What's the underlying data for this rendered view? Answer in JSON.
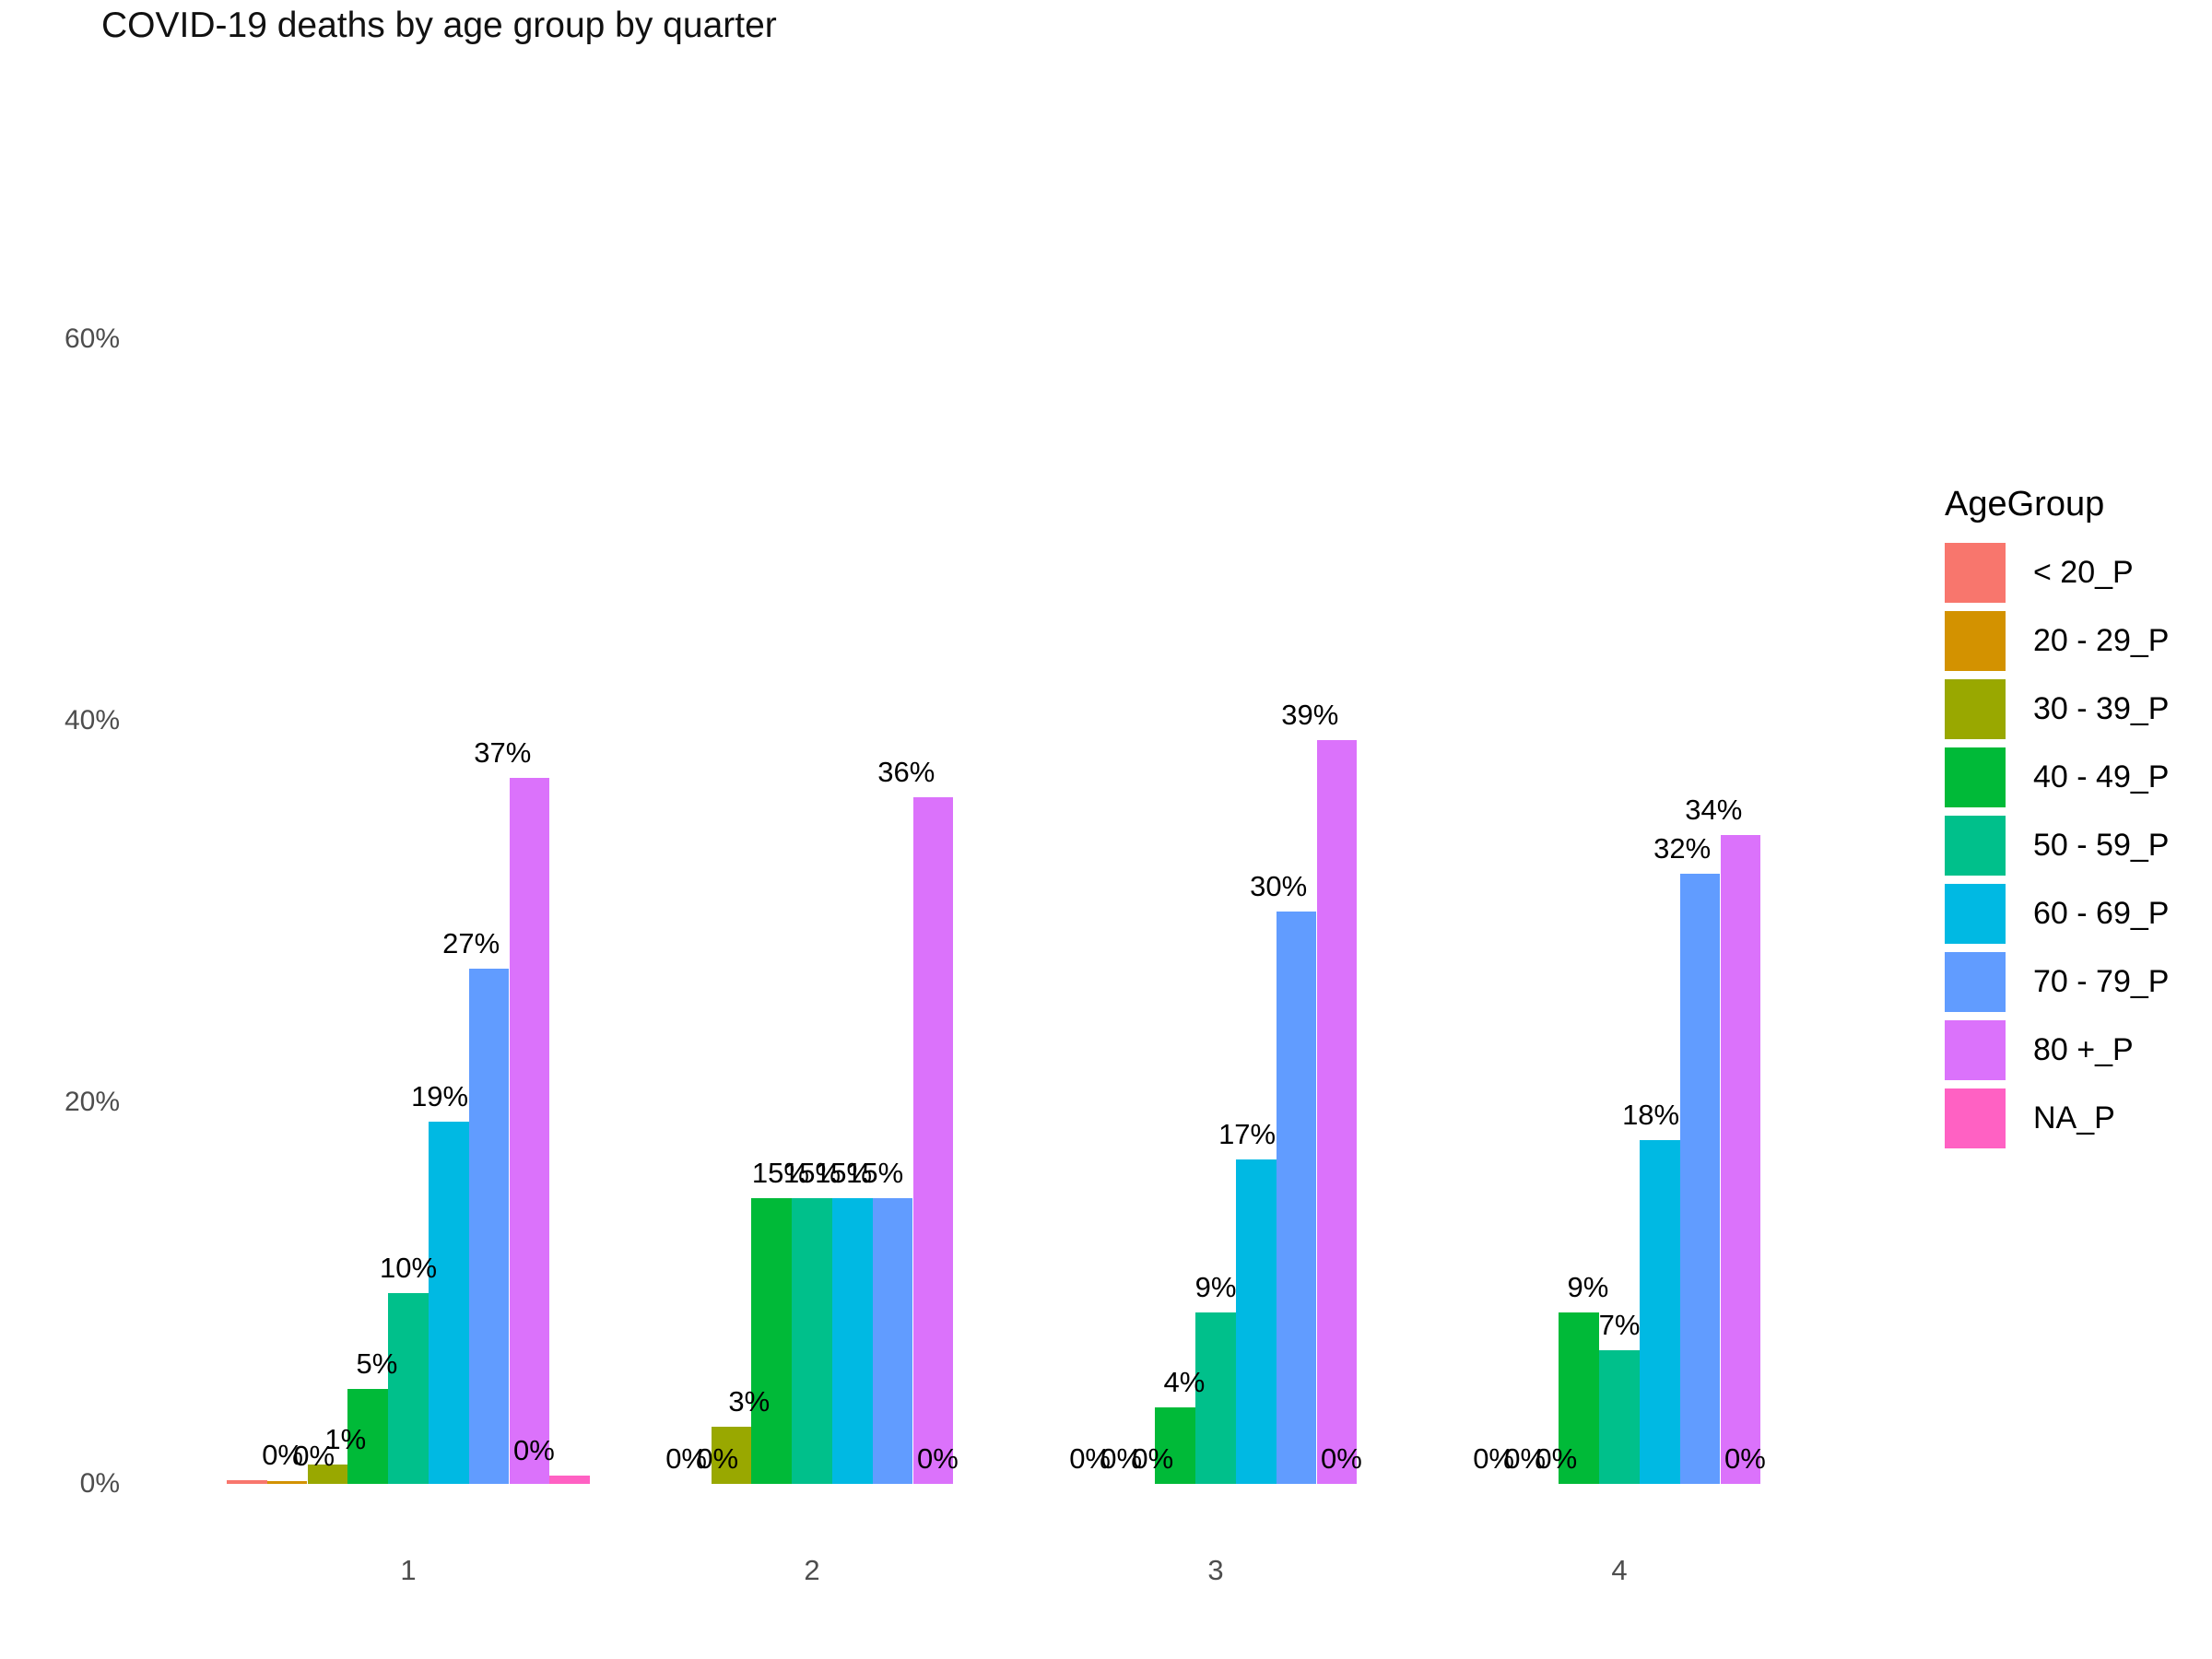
{
  "title": "COVID-19 deaths by age group by quarter",
  "chart_data": {
    "type": "bar",
    "title": "COVID-19 deaths by age group by quarter",
    "categories": [
      "1",
      "2",
      "3",
      "4"
    ],
    "series": [
      {
        "name": "< 20_P",
        "color": "#F8766D",
        "values": [
          0,
          0,
          0,
          0
        ],
        "bar_heights_pct": [
          0.2,
          0,
          0,
          0
        ]
      },
      {
        "name": "20 - 29_P",
        "color": "#D39200",
        "values": [
          0,
          0,
          0,
          0
        ],
        "bar_heights_pct": [
          0.15,
          0,
          0,
          0
        ]
      },
      {
        "name": "30 - 39_P",
        "color": "#99A800",
        "values": [
          1,
          3,
          0,
          0
        ],
        "bar_heights_pct": [
          1,
          3,
          0,
          0
        ]
      },
      {
        "name": "40 - 49_P",
        "color": "#00BA38",
        "values": [
          5,
          15,
          4,
          9
        ],
        "bar_heights_pct": [
          5,
          15,
          4,
          9
        ]
      },
      {
        "name": "50 - 59_P",
        "color": "#00C08B",
        "values": [
          10,
          15,
          9,
          7
        ],
        "bar_heights_pct": [
          10,
          15,
          9,
          7
        ]
      },
      {
        "name": "60 - 69_P",
        "color": "#00B9E3",
        "values": [
          19,
          15,
          17,
          18
        ],
        "bar_heights_pct": [
          19,
          15,
          17,
          18
        ]
      },
      {
        "name": "70 - 79_P",
        "color": "#619CFF",
        "values": [
          27,
          15,
          30,
          32
        ],
        "bar_heights_pct": [
          27,
          15,
          30,
          32
        ]
      },
      {
        "name": "80 +_P",
        "color": "#DB72FB",
        "values": [
          37,
          36,
          39,
          34
        ],
        "bar_heights_pct": [
          37,
          36,
          39,
          34
        ]
      },
      {
        "name": "NA_P",
        "color": "#FF61C3",
        "values": [
          0,
          0,
          0,
          0
        ],
        "bar_heights_pct": [
          0.45,
          0,
          0,
          0
        ]
      }
    ],
    "value_suffix": "%",
    "xlabel": "",
    "ylabel": "",
    "ylim": [
      0,
      60
    ],
    "ytick_values": [
      0,
      20,
      40,
      60
    ],
    "ytick_labels": [
      "0%",
      "20%",
      "40%",
      "60%"
    ],
    "grid": false,
    "legend_title": "AgeGroup",
    "legend_position": "right",
    "colors": {
      "axis_text": "#4D4D4D",
      "label_text": "#000000",
      "title_text": "#111111",
      "background": "#FFFFFF"
    }
  }
}
